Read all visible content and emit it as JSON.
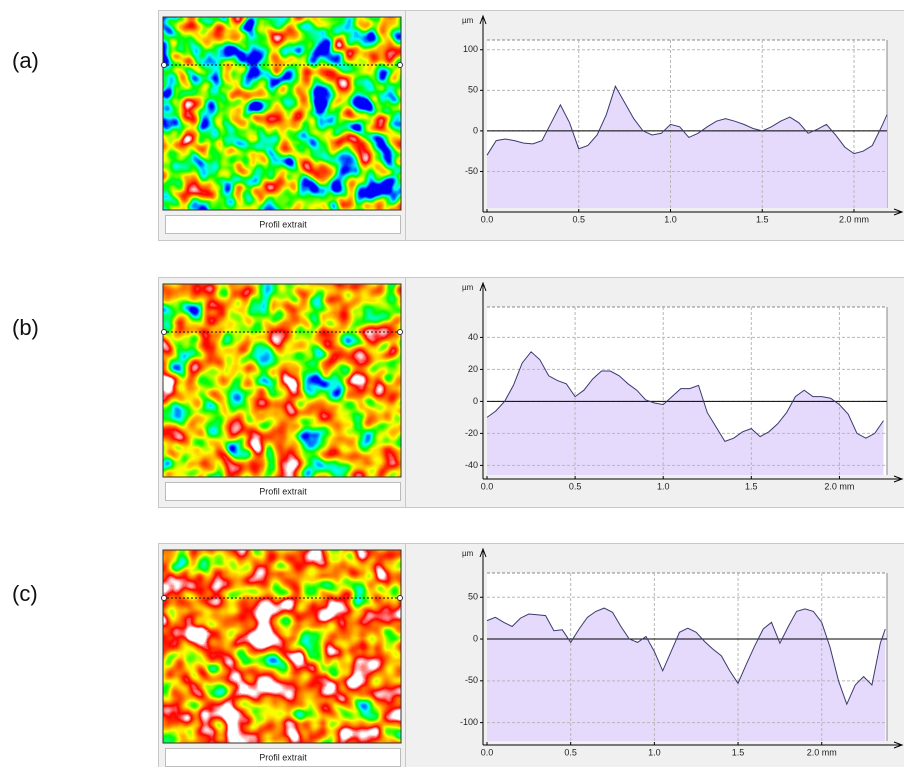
{
  "chart_data": [
    {
      "type": "line",
      "label": "(a)",
      "button": "Profil extrait",
      "ylabel": "µm",
      "x": [
        0,
        0.05,
        0.1,
        0.15,
        0.2,
        0.25,
        0.3,
        0.35,
        0.4,
        0.45,
        0.5,
        0.55,
        0.6,
        0.65,
        0.7,
        0.75,
        0.8,
        0.85,
        0.9,
        0.95,
        1,
        1.05,
        1.1,
        1.15,
        1.2,
        1.25,
        1.3,
        1.35,
        1.4,
        1.45,
        1.5,
        1.55,
        1.6,
        1.65,
        1.7,
        1.75,
        1.8,
        1.85,
        1.9,
        1.95,
        2,
        2.05,
        2.1,
        2.15,
        2.18
      ],
      "series": [
        {
          "color": "#3a3a6e",
          "values": [
            -30,
            -12,
            -10,
            -12,
            -15,
            -16,
            -12,
            10,
            32,
            10,
            -22,
            -18,
            -5,
            20,
            55,
            35,
            15,
            0,
            -5,
            -3,
            8,
            5,
            -8,
            -3,
            5,
            12,
            15,
            12,
            8,
            3,
            0,
            5,
            12,
            17,
            10,
            -3,
            2,
            8,
            -5,
            -20,
            -28,
            -25,
            -18,
            5,
            20
          ]
        }
      ],
      "fill": "#e5dafb",
      "xlim": [
        0,
        2.18
      ],
      "ylim": [
        -95,
        112
      ],
      "xticks": [
        {
          "value": 0,
          "label": "0.0"
        },
        0.5,
        {
          "value": 1,
          "label": "1.0"
        },
        1.5,
        {
          "value": 2,
          "label": "2.0 mm"
        }
      ],
      "yticks": [
        -50,
        0,
        50,
        100
      ],
      "grid": true
    },
    {
      "type": "line",
      "label": "(b)",
      "button": "Profil extrait",
      "ylabel": "µm",
      "x": [
        0,
        0.05,
        0.1,
        0.15,
        0.2,
        0.25,
        0.3,
        0.35,
        0.4,
        0.45,
        0.5,
        0.55,
        0.6,
        0.65,
        0.7,
        0.75,
        0.8,
        0.85,
        0.9,
        0.95,
        1,
        1.05,
        1.1,
        1.15,
        1.2,
        1.25,
        1.3,
        1.35,
        1.4,
        1.45,
        1.5,
        1.55,
        1.6,
        1.65,
        1.7,
        1.75,
        1.8,
        1.85,
        1.9,
        1.95,
        2,
        2.05,
        2.1,
        2.15,
        2.2,
        2.25
      ],
      "series": [
        {
          "color": "#3a3a6e",
          "values": [
            -10,
            -6,
            0,
            10,
            24,
            31,
            26,
            16,
            13,
            11,
            3,
            7,
            14,
            19,
            19,
            16,
            11,
            7,
            1,
            -1,
            -2,
            3,
            8,
            8,
            10,
            -7,
            -16,
            -25,
            -23,
            -19,
            -17,
            -22,
            -19,
            -14,
            -7,
            3,
            7,
            3,
            3,
            2,
            -2,
            -8,
            -20,
            -23,
            -20,
            -12
          ]
        }
      ],
      "fill": "#e5dafb",
      "xlim": [
        0,
        2.27
      ],
      "ylim": [
        -46,
        59
      ],
      "xticks": [
        {
          "value": 0,
          "label": "0.0"
        },
        0.5,
        {
          "value": 1,
          "label": "1.0"
        },
        1.5,
        {
          "value": 2,
          "label": "2.0 mm"
        }
      ],
      "yticks": [
        -40,
        -20,
        0,
        20,
        40
      ],
      "grid": true
    },
    {
      "type": "line",
      "label": "(c)",
      "button": "Profil extrait",
      "ylabel": "µm",
      "x": [
        0,
        0.05,
        0.1,
        0.15,
        0.2,
        0.25,
        0.3,
        0.35,
        0.4,
        0.45,
        0.5,
        0.55,
        0.6,
        0.65,
        0.7,
        0.75,
        0.8,
        0.85,
        0.9,
        0.95,
        1,
        1.05,
        1.1,
        1.15,
        1.2,
        1.25,
        1.3,
        1.35,
        1.4,
        1.45,
        1.5,
        1.55,
        1.6,
        1.65,
        1.7,
        1.75,
        1.8,
        1.85,
        1.9,
        1.95,
        2,
        2.05,
        2.1,
        2.15,
        2.2,
        2.25,
        2.3,
        2.35,
        2.38
      ],
      "series": [
        {
          "color": "#3a3a6e",
          "values": [
            22,
            26,
            20,
            15,
            25,
            30,
            29,
            28,
            10,
            11,
            -4,
            12,
            26,
            33,
            37,
            32,
            15,
            0,
            -4,
            3,
            -15,
            -38,
            -15,
            8,
            13,
            8,
            -3,
            -12,
            -20,
            -38,
            -53,
            -30,
            -8,
            12,
            20,
            -5,
            15,
            33,
            36,
            33,
            20,
            -10,
            -50,
            -78,
            -55,
            -45,
            -55,
            -5,
            12
          ]
        }
      ],
      "fill": "#e5dafb",
      "xlim": [
        0,
        2.39
      ],
      "ylim": [
        -122,
        79
      ],
      "xticks": [
        {
          "value": 0,
          "label": "0.0"
        },
        0.5,
        {
          "value": 1,
          "label": "1.0"
        },
        1.5,
        {
          "value": 2,
          "label": "2.0 mm"
        }
      ],
      "yticks": [
        -100,
        -50,
        0,
        50
      ],
      "grid": true
    }
  ]
}
